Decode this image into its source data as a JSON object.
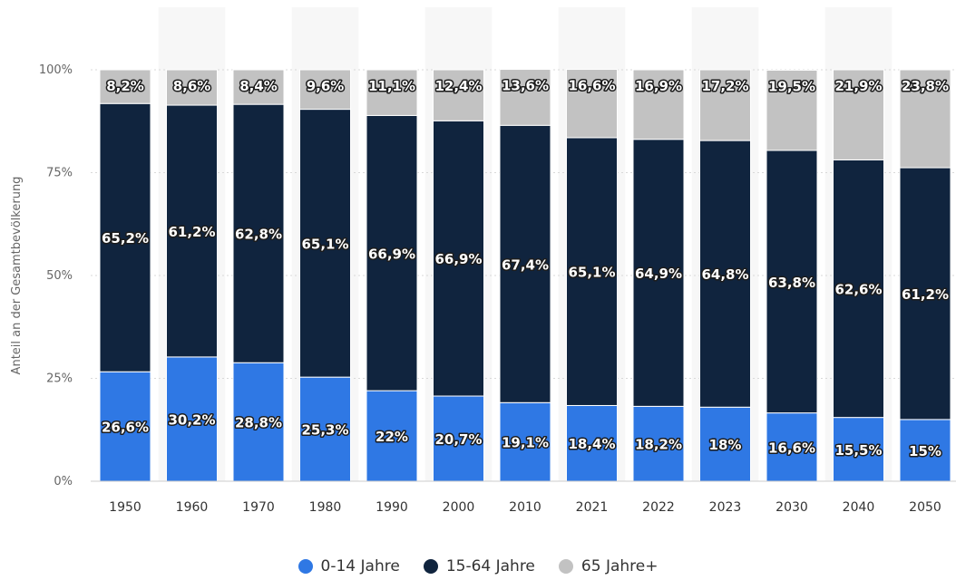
{
  "chart_data": {
    "type": "bar",
    "stacked": true,
    "ylabel": "Anteil an der Gesamtbevölkerung",
    "ylim": [
      0,
      100
    ],
    "yticks": [
      {
        "value": 0,
        "label": "0%"
      },
      {
        "value": 25,
        "label": "25%"
      },
      {
        "value": 50,
        "label": "50%"
      },
      {
        "value": 75,
        "label": "75%"
      },
      {
        "value": 100,
        "label": "100%"
      }
    ],
    "grid": true,
    "legend_position": "bottom",
    "categories": [
      "1950",
      "1960",
      "1970",
      "1980",
      "1990",
      "2000",
      "2010",
      "2021",
      "2022",
      "2023",
      "2030",
      "2040",
      "2050"
    ],
    "series": [
      {
        "name": "0-14 Jahre",
        "color": "#2f78e4",
        "values": [
          26.6,
          30.2,
          28.8,
          25.3,
          22,
          20.7,
          19.1,
          18.4,
          18.2,
          18,
          16.6,
          15.5,
          15
        ],
        "labels": [
          "26,6%",
          "30,2%",
          "28,8%",
          "25,3%",
          "22%",
          "20,7%",
          "19,1%",
          "18,4%",
          "18,2%",
          "18%",
          "16,6%",
          "15,5%",
          "15%"
        ]
      },
      {
        "name": "15-64 Jahre",
        "color": "#10243e",
        "values": [
          65.2,
          61.2,
          62.8,
          65.1,
          66.9,
          66.9,
          67.4,
          65.1,
          64.9,
          64.8,
          63.8,
          62.6,
          61.2
        ],
        "labels": [
          "65,2%",
          "61,2%",
          "62,8%",
          "65,1%",
          "66,9%",
          "66,9%",
          "67,4%",
          "65,1%",
          "64,9%",
          "64,8%",
          "63,8%",
          "62,6%",
          "61,2%"
        ]
      },
      {
        "name": "65 Jahre+",
        "color": "#c2c2c2",
        "values": [
          8.2,
          8.6,
          8.4,
          9.6,
          11.1,
          12.4,
          13.6,
          16.6,
          16.9,
          17.2,
          19.5,
          21.9,
          23.8
        ],
        "labels": [
          "8,2%",
          "8,6%",
          "8,4%",
          "9,6%",
          "11,1%",
          "12,4%",
          "13,6%",
          "16,6%",
          "16,9%",
          "17,2%",
          "19,5%",
          "21,9%",
          "23,8%"
        ]
      }
    ]
  }
}
